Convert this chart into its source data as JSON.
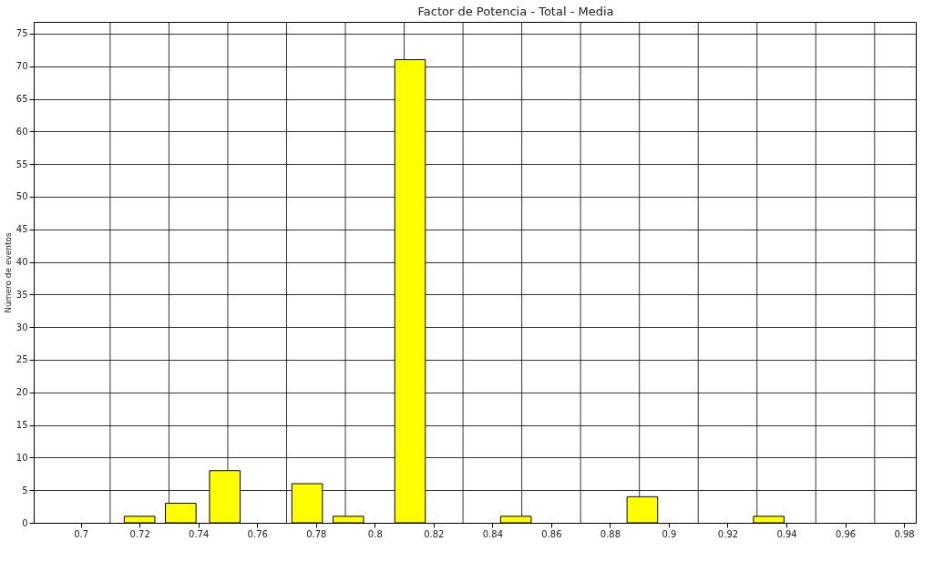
{
  "chart_data": {
    "type": "bar",
    "title": "Factor de Potencia  -  Total  -  Media",
    "ylabel": "Número de eventos",
    "x": [
      0.72,
      0.734,
      0.749,
      0.777,
      0.791,
      0.812,
      0.848,
      0.891,
      0.934
    ],
    "values": [
      1,
      3,
      8,
      6,
      1,
      71,
      1,
      4,
      1
    ],
    "color": "#ffff00",
    "xlim": [
      0.684,
      0.984
    ],
    "xticks": [
      0.7,
      0.72,
      0.74,
      0.76,
      0.78,
      0.8,
      0.82,
      0.84,
      0.86,
      0.88,
      0.9,
      0.92,
      0.94,
      0.96,
      0.98
    ],
    "ylim": [
      0,
      76.8
    ],
    "yticks": [
      0,
      5,
      10,
      15,
      20,
      25,
      30,
      35,
      40,
      45,
      50,
      55,
      60,
      65,
      70,
      75
    ],
    "grid": true
  }
}
